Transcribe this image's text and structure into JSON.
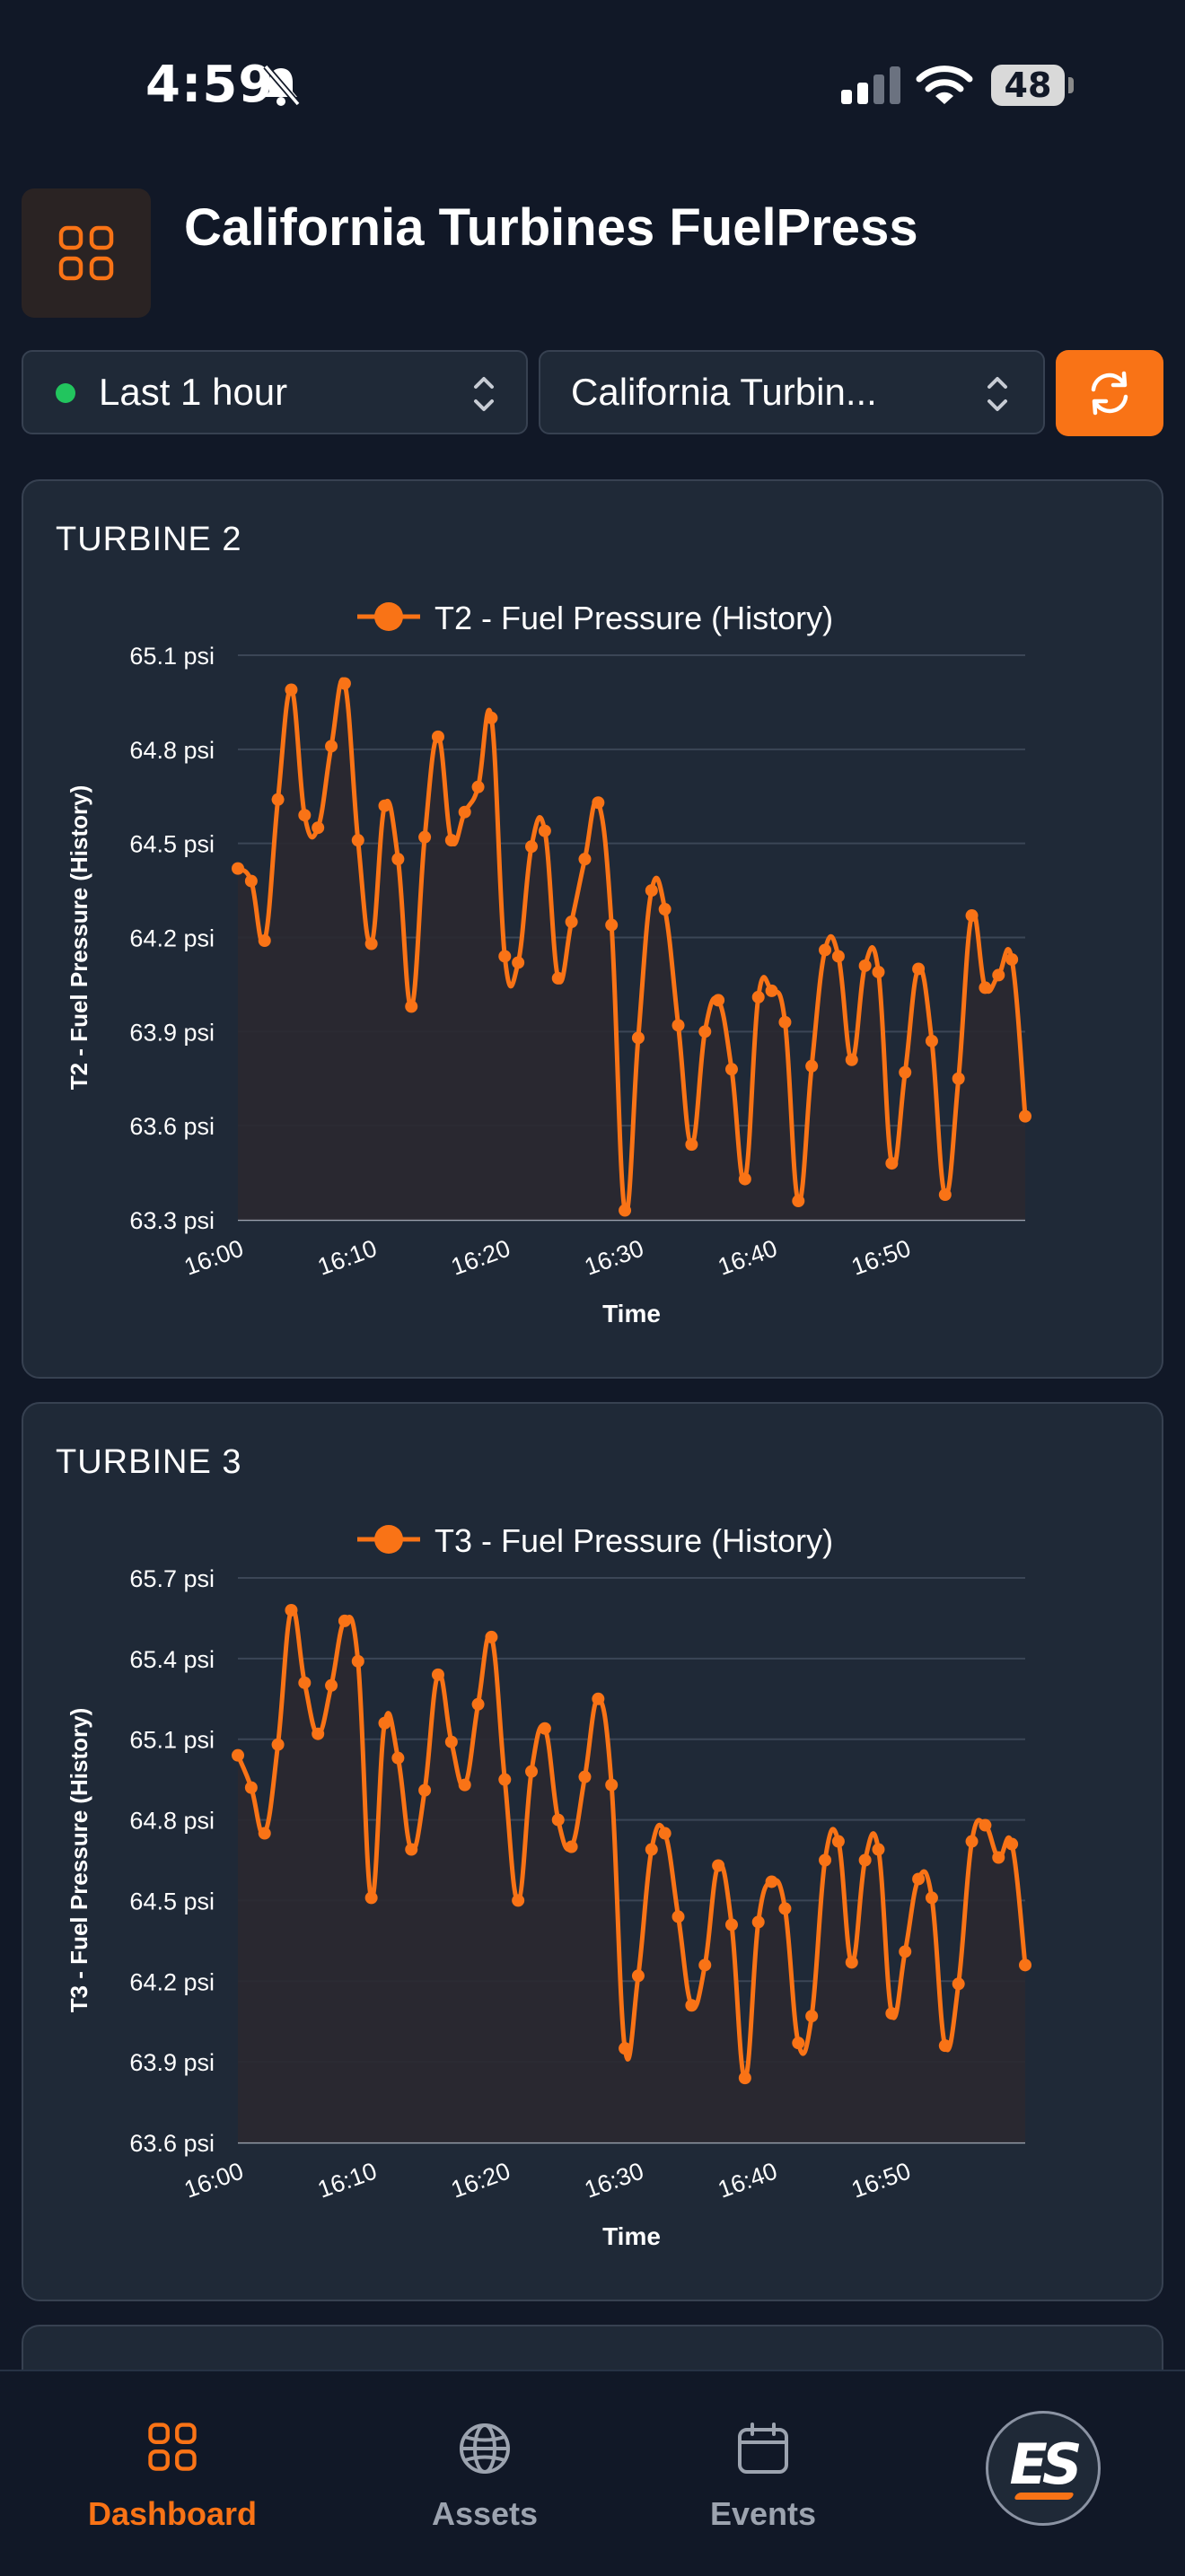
{
  "status": {
    "time": "4:59",
    "battery": "48"
  },
  "app": {
    "title": "California Turbines FuelPress"
  },
  "filters": {
    "time_range": "Last 1 hour",
    "site": "California Turbin..."
  },
  "colors": {
    "accent": "#f97316",
    "live": "#22c55e",
    "card": "#1f2937",
    "background": "#111827"
  },
  "chart_data": [
    {
      "type": "line",
      "title": "TURBINE 2",
      "legend_position": "top-center",
      "xlabel": "Time",
      "ylabel": "T2 - Fuel Pressure (History)",
      "x_ticks": [
        "16:00",
        "16:10",
        "16:20",
        "16:30",
        "16:40",
        "16:50"
      ],
      "x_range": [
        "16:00",
        "16:59"
      ],
      "y_ticks": [
        "65.1 psi",
        "64.8 psi",
        "64.5 psi",
        "64.2 psi",
        "63.9 psi",
        "63.6 psi",
        "63.3 psi"
      ],
      "ylim": [
        63.3,
        65.1
      ],
      "grid": true,
      "x": [
        "16:00",
        "16:01",
        "16:02",
        "16:03",
        "16:04",
        "16:05",
        "16:06",
        "16:07",
        "16:08",
        "16:09",
        "16:10",
        "16:11",
        "16:12",
        "16:13",
        "16:14",
        "16:15",
        "16:16",
        "16:17",
        "16:18",
        "16:19",
        "16:20",
        "16:21",
        "16:22",
        "16:23",
        "16:24",
        "16:25",
        "16:26",
        "16:27",
        "16:28",
        "16:29",
        "16:30",
        "16:31",
        "16:32",
        "16:33",
        "16:34",
        "16:35",
        "16:36",
        "16:37",
        "16:38",
        "16:39",
        "16:40",
        "16:41",
        "16:42",
        "16:43",
        "16:44",
        "16:45",
        "16:46",
        "16:47",
        "16:48",
        "16:49",
        "16:50",
        "16:51",
        "16:52",
        "16:53",
        "16:54",
        "16:55",
        "16:56",
        "16:57",
        "16:58",
        "16:59"
      ],
      "series": [
        {
          "name": "T2 - Fuel Pressure (History)",
          "values": [
            64.42,
            64.38,
            64.19,
            64.64,
            64.99,
            64.59,
            64.55,
            64.81,
            65.01,
            64.51,
            64.18,
            64.62,
            64.45,
            63.98,
            64.52,
            64.84,
            64.51,
            64.6,
            64.68,
            64.9,
            64.14,
            64.12,
            64.49,
            64.54,
            64.07,
            64.25,
            64.45,
            64.63,
            64.24,
            63.33,
            63.88,
            64.35,
            64.29,
            63.92,
            63.54,
            63.9,
            64.0,
            63.78,
            63.43,
            64.01,
            64.03,
            63.93,
            63.36,
            63.79,
            64.16,
            64.14,
            63.81,
            64.11,
            64.09,
            63.48,
            63.77,
            64.1,
            63.87,
            63.38,
            63.75,
            64.27,
            64.04,
            64.08,
            64.13,
            63.63
          ]
        }
      ]
    },
    {
      "type": "line",
      "title": "TURBINE 3",
      "legend_position": "top-center",
      "xlabel": "Time",
      "ylabel": "T3 - Fuel Pressure (History)",
      "x_ticks": [
        "16:00",
        "16:10",
        "16:20",
        "16:30",
        "16:40",
        "16:50"
      ],
      "x_range": [
        "16:00",
        "16:59"
      ],
      "y_ticks": [
        "65.7 psi",
        "65.4 psi",
        "65.1 psi",
        "64.8 psi",
        "64.5 psi",
        "64.2 psi",
        "63.9 psi",
        "63.6 psi"
      ],
      "ylim": [
        63.6,
        65.7
      ],
      "grid": true,
      "x": [
        "16:00",
        "16:01",
        "16:02",
        "16:03",
        "16:04",
        "16:05",
        "16:06",
        "16:07",
        "16:08",
        "16:09",
        "16:10",
        "16:11",
        "16:12",
        "16:13",
        "16:14",
        "16:15",
        "16:16",
        "16:17",
        "16:18",
        "16:19",
        "16:20",
        "16:21",
        "16:22",
        "16:23",
        "16:24",
        "16:25",
        "16:26",
        "16:27",
        "16:28",
        "16:29",
        "16:30",
        "16:31",
        "16:32",
        "16:33",
        "16:34",
        "16:35",
        "16:36",
        "16:37",
        "16:38",
        "16:39",
        "16:40",
        "16:41",
        "16:42",
        "16:43",
        "16:44",
        "16:45",
        "16:46",
        "16:47",
        "16:48",
        "16:49",
        "16:50",
        "16:51",
        "16:52",
        "16:53",
        "16:54",
        "16:55",
        "16:56",
        "16:57",
        "16:58",
        "16:59"
      ],
      "series": [
        {
          "name": "T3 - Fuel Pressure (History)",
          "values": [
            65.04,
            64.92,
            64.75,
            65.08,
            65.58,
            65.31,
            65.12,
            65.3,
            65.54,
            65.39,
            64.51,
            65.16,
            65.03,
            64.69,
            64.91,
            65.34,
            65.09,
            64.93,
            65.23,
            65.48,
            64.95,
            64.5,
            64.98,
            65.14,
            64.8,
            64.7,
            64.96,
            65.25,
            64.93,
            63.95,
            64.22,
            64.69,
            64.75,
            64.44,
            64.11,
            64.26,
            64.63,
            64.41,
            63.84,
            64.42,
            64.57,
            64.47,
            63.97,
            64.07,
            64.65,
            64.72,
            64.27,
            64.65,
            64.69,
            64.08,
            64.31,
            64.58,
            64.51,
            63.96,
            64.19,
            64.72,
            64.78,
            64.66,
            64.71,
            64.26
          ]
        }
      ]
    }
  ],
  "tabs": [
    {
      "label": "Dashboard",
      "icon": "dashboard-grid-icon",
      "active": true
    },
    {
      "label": "Assets",
      "icon": "globe-icon",
      "active": false
    },
    {
      "label": "Events",
      "icon": "calendar-icon",
      "active": false
    }
  ],
  "logo": {
    "text": "ES"
  }
}
